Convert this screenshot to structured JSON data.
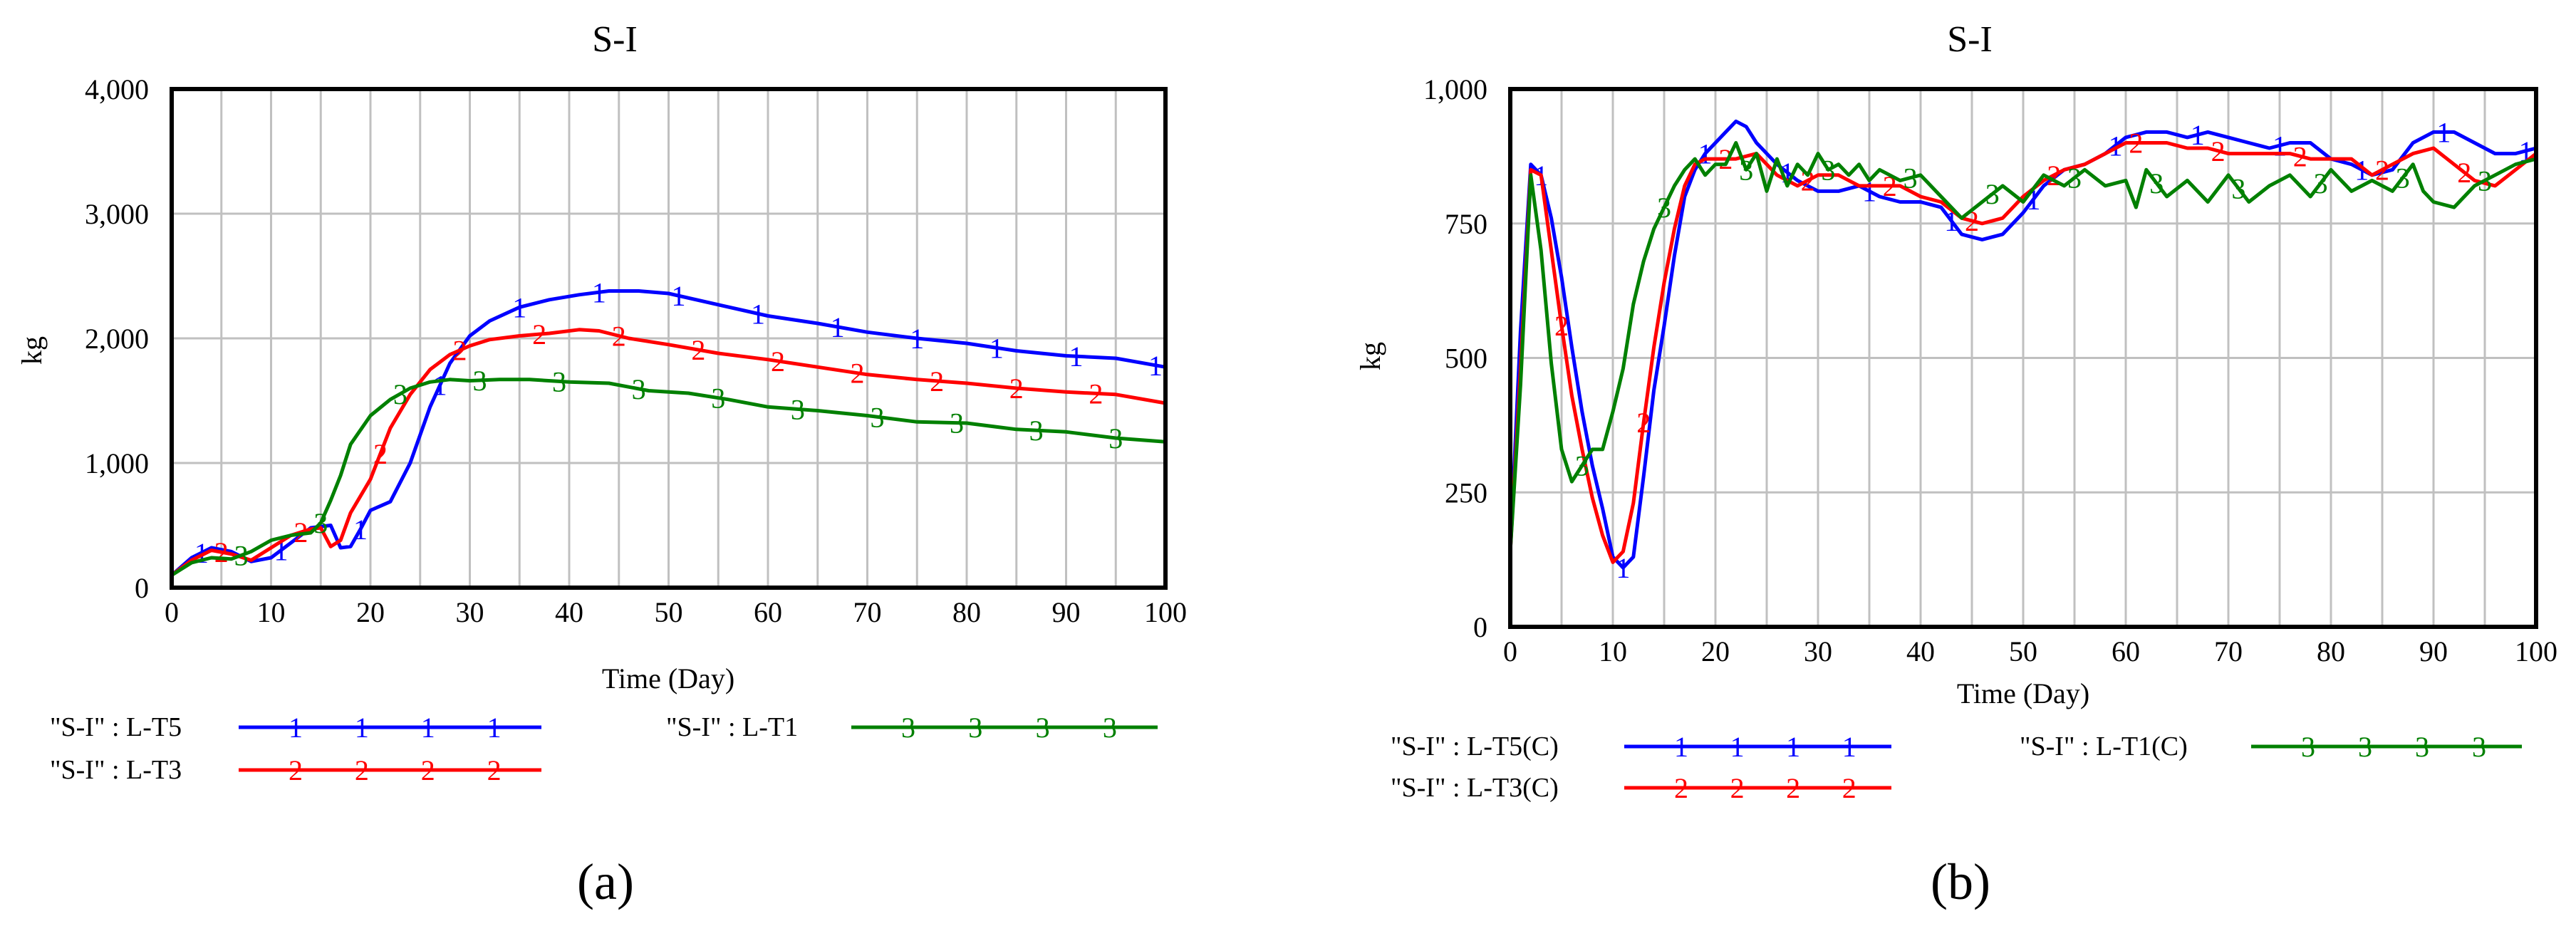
{
  "chart_data": [
    {
      "type": "line",
      "panel": "a",
      "panel_label": "(a)",
      "title": "S-I",
      "xlabel": "Time (Day)",
      "ylabel": "kg",
      "xlim": [
        0,
        100
      ],
      "ylim": [
        0,
        4000
      ],
      "xticks": [
        0,
        10,
        20,
        30,
        40,
        50,
        60,
        70,
        80,
        90,
        100
      ],
      "yticks": [
        0,
        1000,
        2000,
        3000,
        4000
      ],
      "ytick_labels": [
        "0",
        "1,000",
        "2,000",
        "3,000",
        "4,000"
      ],
      "series": [
        {
          "name": "\"S-I\" : L-T5",
          "marker": "1",
          "color": "#0000ff",
          "x": [
            0,
            2,
            4,
            6,
            8,
            10,
            12,
            14,
            16,
            17,
            18,
            19,
            20,
            22,
            24,
            26,
            28,
            30,
            32,
            35,
            38,
            41,
            44,
            47,
            50,
            55,
            60,
            65,
            70,
            75,
            80,
            85,
            90,
            95,
            100
          ],
          "y": [
            100,
            240,
            320,
            290,
            210,
            240,
            360,
            480,
            500,
            320,
            330,
            470,
            620,
            690,
            1000,
            1450,
            1800,
            2020,
            2140,
            2250,
            2310,
            2350,
            2380,
            2380,
            2360,
            2270,
            2180,
            2120,
            2050,
            2000,
            1960,
            1900,
            1860,
            1840,
            1770
          ]
        },
        {
          "name": "\"S-I\" : L-T3",
          "marker": "2",
          "color": "#ff0000",
          "x": [
            0,
            2,
            4,
            6,
            8,
            10,
            12,
            14,
            15,
            16,
            17,
            18,
            20,
            22,
            24,
            26,
            28,
            30,
            32,
            35,
            38,
            41,
            43,
            46,
            50,
            55,
            60,
            65,
            70,
            75,
            80,
            85,
            90,
            95,
            100
          ],
          "y": [
            100,
            220,
            300,
            270,
            220,
            320,
            420,
            470,
            480,
            330,
            380,
            600,
            870,
            1280,
            1550,
            1750,
            1870,
            1940,
            1990,
            2020,
            2040,
            2070,
            2060,
            2000,
            1950,
            1880,
            1830,
            1770,
            1710,
            1670,
            1640,
            1600,
            1570,
            1550,
            1480
          ]
        },
        {
          "name": "\"S-I\" : L-T1",
          "marker": "3",
          "color": "#008000",
          "x": [
            0,
            2,
            4,
            6,
            8,
            10,
            12,
            14,
            15,
            16,
            17,
            18,
            20,
            22,
            24,
            26,
            28,
            30,
            33,
            36,
            40,
            44,
            48,
            52,
            56,
            60,
            65,
            70,
            75,
            80,
            85,
            90,
            95,
            100
          ],
          "y": [
            100,
            200,
            240,
            230,
            290,
            380,
            420,
            440,
            520,
            700,
            900,
            1150,
            1380,
            1510,
            1600,
            1650,
            1670,
            1660,
            1670,
            1670,
            1650,
            1640,
            1580,
            1560,
            1510,
            1450,
            1420,
            1380,
            1330,
            1320,
            1270,
            1250,
            1200,
            1170
          ]
        }
      ]
    },
    {
      "type": "line",
      "panel": "b",
      "panel_label": "(b)",
      "title": "S-I",
      "xlabel": "Time (Day)",
      "ylabel": "kg",
      "xlim": [
        0,
        100
      ],
      "ylim": [
        0,
        1000
      ],
      "xticks": [
        0,
        10,
        20,
        30,
        40,
        50,
        60,
        70,
        80,
        90,
        100
      ],
      "yticks": [
        0,
        250,
        500,
        750,
        1000
      ],
      "ytick_labels": [
        "0",
        "250",
        "500",
        "750",
        "1,000"
      ],
      "series": [
        {
          "name": "\"S-I\" : L-T5(C)",
          "marker": "1",
          "color": "#0000ff",
          "x": [
            0,
            1,
            2,
            3,
            4,
            5,
            6,
            7,
            8,
            9,
            10,
            11,
            12,
            13,
            14,
            15,
            16,
            17,
            18,
            19,
            20,
            21,
            22,
            23,
            24,
            26,
            28,
            30,
            32,
            34,
            36,
            38,
            40,
            42,
            44,
            46,
            48,
            50,
            52,
            54,
            56,
            58,
            60,
            62,
            64,
            66,
            68,
            70,
            72,
            74,
            76,
            78,
            80,
            82,
            84,
            86,
            88,
            90,
            92,
            94,
            96,
            98,
            100
          ],
          "y": [
            140,
            550,
            860,
            840,
            760,
            650,
            520,
            400,
            300,
            220,
            130,
            110,
            130,
            280,
            440,
            560,
            690,
            800,
            850,
            880,
            900,
            920,
            940,
            930,
            900,
            860,
            830,
            810,
            810,
            820,
            800,
            790,
            790,
            780,
            730,
            720,
            730,
            770,
            820,
            850,
            860,
            880,
            910,
            920,
            920,
            910,
            920,
            910,
            900,
            890,
            900,
            900,
            870,
            860,
            840,
            850,
            900,
            920,
            920,
            900,
            880,
            880,
            890
          ]
        },
        {
          "name": "\"S-I\" : L-T3(C)",
          "marker": "2",
          "color": "#ff0000",
          "x": [
            0,
            1,
            2,
            3,
            4,
            5,
            6,
            7,
            8,
            9,
            10,
            11,
            12,
            13,
            14,
            15,
            16,
            17,
            18,
            19,
            20,
            22,
            24,
            26,
            28,
            30,
            32,
            34,
            36,
            38,
            40,
            42,
            44,
            46,
            48,
            50,
            52,
            54,
            56,
            58,
            60,
            62,
            64,
            66,
            68,
            70,
            72,
            74,
            76,
            78,
            80,
            82,
            84,
            86,
            88,
            90,
            92,
            94,
            96,
            98,
            100
          ],
          "y": [
            140,
            480,
            850,
            840,
            700,
            560,
            430,
            330,
            240,
            170,
            120,
            140,
            230,
            380,
            520,
            640,
            740,
            820,
            860,
            870,
            870,
            870,
            880,
            840,
            820,
            840,
            840,
            820,
            820,
            820,
            800,
            790,
            760,
            750,
            760,
            800,
            830,
            850,
            860,
            880,
            900,
            900,
            900,
            890,
            890,
            880,
            880,
            880,
            880,
            870,
            870,
            870,
            840,
            860,
            880,
            890,
            860,
            830,
            820,
            850,
            880
          ]
        },
        {
          "name": "\"S-I\" : L-T1(C)",
          "marker": "3",
          "color": "#008000",
          "x": [
            0,
            1,
            2,
            3,
            4,
            5,
            6,
            7,
            8,
            9,
            10,
            11,
            12,
            13,
            14,
            15,
            16,
            17,
            18,
            19,
            20,
            21,
            22,
            23,
            24,
            25,
            26,
            27,
            28,
            29,
            30,
            31,
            32,
            33,
            34,
            35,
            36,
            38,
            40,
            42,
            44,
            46,
            48,
            50,
            52,
            54,
            56,
            58,
            60,
            61,
            62,
            64,
            66,
            68,
            70,
            72,
            74,
            76,
            78,
            80,
            82,
            84,
            86,
            88,
            89,
            90,
            92,
            94,
            96,
            98,
            100
          ],
          "y": [
            140,
            450,
            840,
            700,
            490,
            330,
            270,
            300,
            330,
            330,
            400,
            480,
            600,
            680,
            740,
            780,
            820,
            850,
            870,
            840,
            860,
            860,
            900,
            850,
            880,
            810,
            870,
            820,
            860,
            840,
            880,
            850,
            860,
            840,
            860,
            830,
            850,
            830,
            840,
            800,
            760,
            790,
            820,
            790,
            840,
            820,
            850,
            820,
            830,
            780,
            850,
            800,
            830,
            790,
            840,
            790,
            820,
            840,
            800,
            850,
            810,
            830,
            810,
            860,
            810,
            790,
            780,
            820,
            840,
            860,
            870
          ]
        }
      ]
    }
  ]
}
